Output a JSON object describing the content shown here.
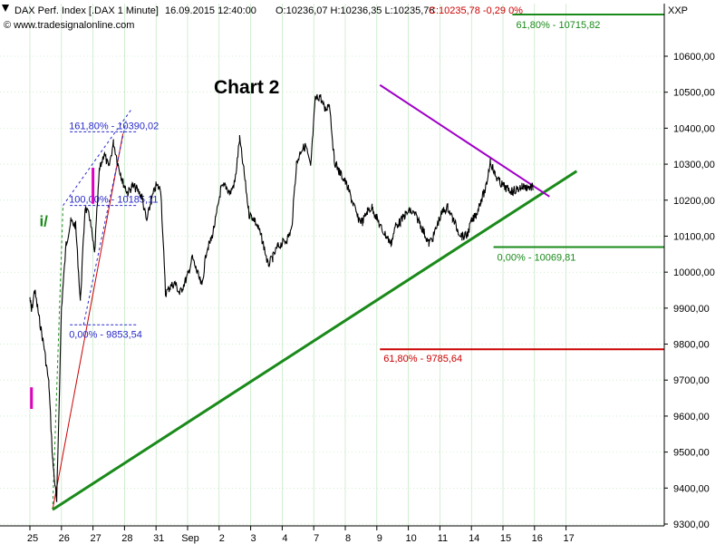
{
  "header": {
    "instrument": "DAX Perf. Index [.DAX  1 Minute]",
    "datetime": "16.09.2015 12:40:00",
    "ohl": "O:10236,07 H:10236,35 L:10235,78",
    "close": "C:10235,78 -0,29 0%",
    "source": "© www.tradesignalonline.com",
    "symbol": "XXP"
  },
  "colors": {
    "price": "#000000",
    "grid": "#b5e3b5",
    "trend_green": "#1a8a1a",
    "fib_blue": "#2a2acc",
    "fib_red": "#cc0000",
    "triangle_purple": "#a000c8",
    "header_red": "#cc0000"
  },
  "chart_data": {
    "type": "line",
    "title": "Chart 2",
    "timeframe": "1 Minute",
    "y_axis": {
      "side": "right",
      "range": [
        9280,
        10730
      ],
      "ticks": [
        "9300,00",
        "9400,00",
        "9500,00",
        "9600,00",
        "9700,00",
        "9800,00",
        "9900,00",
        "10000,00",
        "10100,00",
        "10200,00",
        "10300,00",
        "10400,00",
        "10500,00",
        "10600,00"
      ],
      "tick_values": [
        9300,
        9400,
        9500,
        9600,
        9700,
        9800,
        9900,
        10000,
        10100,
        10200,
        10300,
        10400,
        10500,
        10600
      ]
    },
    "x_axis": {
      "labels": [
        "25",
        "26",
        "27",
        "28",
        "31",
        "Sep",
        "2",
        "3",
        "4",
        "7",
        "8",
        "9",
        "10",
        "11",
        "14",
        "15",
        "16",
        "17"
      ],
      "range": [
        0,
        18
      ]
    },
    "grid": true,
    "series": [
      {
        "style": "price",
        "x": [
          0,
          0.05,
          0.15,
          0.3,
          0.45,
          0.6,
          0.72,
          0.85,
          1,
          1.15,
          1.3,
          1.45,
          1.6,
          1.75,
          1.9,
          2.05,
          2.2,
          2.35,
          2.5,
          2.65,
          2.8,
          2.95,
          3.1,
          3.25,
          3.4,
          3.55,
          3.7,
          3.85,
          4,
          4.15,
          4.3,
          4.45,
          4.6,
          4.75,
          5,
          5.15,
          5.3,
          5.45,
          5.6,
          5.75,
          5.9,
          6.05,
          6.2,
          6.35,
          6.5,
          6.65,
          6.8,
          6.95,
          7.1,
          7.25,
          7.4,
          7.55,
          7.7,
          7.85,
          8,
          8.15,
          8.3,
          8.45,
          8.6,
          8.75,
          8.9,
          9.05,
          9.2,
          9.35,
          9.5,
          9.65,
          9.8,
          9.95,
          10.1,
          10.25,
          10.4,
          10.55,
          10.7,
          10.85,
          11,
          11.15,
          11.3,
          11.45,
          11.6,
          11.75,
          11.9,
          12.05,
          12.2,
          12.35,
          12.5,
          12.65,
          12.8,
          12.95,
          13.1,
          13.25,
          13.4,
          13.55,
          13.7,
          13.85,
          14,
          14.15,
          14.3,
          14.45,
          14.6,
          14.75,
          14.9,
          15,
          15.15,
          15.3,
          15.45,
          15.6,
          15.75,
          15.9,
          15.95
        ],
        "y": [
          9930,
          9890,
          9950,
          9870,
          9790,
          9690,
          9480,
          9360,
          9900,
          10080,
          10140,
          10130,
          9920,
          10180,
          10150,
          10050,
          10280,
          10330,
          10290,
          10360,
          10300,
          10250,
          10220,
          10240,
          10230,
          10210,
          10140,
          10200,
          10240,
          10230,
          9940,
          9960,
          9970,
          9940,
          9990,
          10040,
          10000,
          9960,
          10060,
          10090,
          10150,
          10230,
          10240,
          10220,
          10250,
          10370,
          10270,
          10160,
          10150,
          10120,
          10080,
          10020,
          10040,
          10070,
          10080,
          10090,
          10120,
          10300,
          10340,
          10350,
          10290,
          10480,
          10490,
          10450,
          10470,
          10310,
          10280,
          10260,
          10230,
          10190,
          10150,
          10140,
          10170,
          10180,
          10150,
          10120,
          10100,
          10080,
          10130,
          10140,
          10160,
          10170,
          10160,
          10140,
          10110,
          10080,
          10100,
          10140,
          10170,
          10180,
          10150,
          10120,
          10100,
          10100,
          10140,
          10160,
          10200,
          10230,
          10310,
          10270,
          10250,
          10240,
          10230,
          10225,
          10230,
          10238,
          10236,
          10236,
          10236
        ]
      },
      {
        "style": "trendline",
        "x": [
          0.72,
          15.9
        ],
        "y": [
          9340,
          10180
        ]
      },
      {
        "style": "triangle",
        "x": [
          11.1,
          15.9
        ],
        "y": [
          10520,
          10210
        ]
      }
    ],
    "horizontal_levels": [
      {
        "value": 10715.82,
        "label": "61,80% - 10715,82",
        "color": "green",
        "x_start": 15.3
      },
      {
        "value": 10069.81,
        "label": "0,00% - 10069,81",
        "color": "green",
        "x_start": 14.7
      },
      {
        "value": 9785.64,
        "label": "61,80% - 9785,64",
        "color": "red",
        "x_start": 11.1
      }
    ],
    "fib_annotations": [
      {
        "value": 10390.02,
        "label": "161,80% - 10390,02",
        "x": 1.5
      },
      {
        "value": 10185.11,
        "label": "100,00% - 10185,11",
        "x": 1.5
      },
      {
        "value": 9853.54,
        "label": "0,00% - 9853,54",
        "x": 1.5
      }
    ],
    "wave_label": "i/"
  }
}
